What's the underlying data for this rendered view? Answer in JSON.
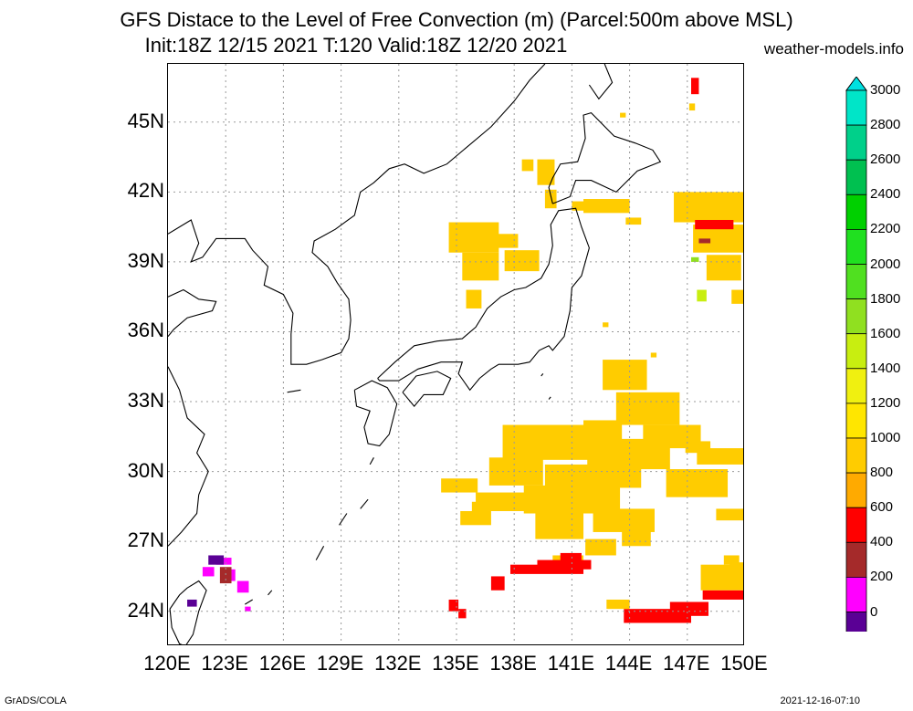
{
  "title": {
    "line1": "GFS Distace to the Level of Free Convection (m) (Parcel:500m above MSL)",
    "line2": "Init:18Z 12/15 2021 T:120 Valid:18Z 12/20 2021",
    "site": "weather-models.info"
  },
  "footer": {
    "left": "GrADS/COLA",
    "right": "2021-12-16-07:10"
  },
  "axes": {
    "lat_labels": [
      "45N",
      "42N",
      "39N",
      "36N",
      "33N",
      "30N",
      "27N",
      "24N"
    ],
    "lon_labels": [
      "120E",
      "123E",
      "126E",
      "129E",
      "132E",
      "135E",
      "138E",
      "141E",
      "144E",
      "147E",
      "150E"
    ],
    "lat_range": [
      22.5,
      47.5
    ],
    "lon_range": [
      120,
      150
    ]
  },
  "colorbar": {
    "labels": [
      "3000",
      "2800",
      "2600",
      "2400",
      "2200",
      "2000",
      "1800",
      "1600",
      "1400",
      "1200",
      "1000",
      "800",
      "600",
      "400",
      "200",
      "0"
    ],
    "colors": [
      "#00e5c8",
      "#00d08a",
      "#00c050",
      "#00d000",
      "#20e020",
      "#50e020",
      "#90e020",
      "#c8ee10",
      "#f0f010",
      "#ffe600",
      "#ffcc00",
      "#ffaa00",
      "#ff0000",
      "#a52a2a",
      "#ff00ff",
      "#5a0095"
    ],
    "top_triangle": "#00e0e0",
    "bottom_triangle": "#3a0070"
  }
}
